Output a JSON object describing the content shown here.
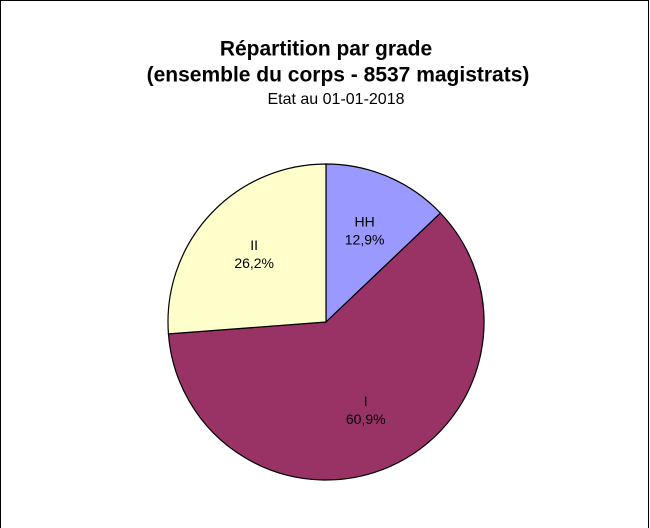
{
  "chart_data": {
    "type": "pie",
    "title": "Répartition par grade",
    "subtitle": "(ensemble du corps - 8537 magistrats)",
    "note": "Etat au 01-01-2018",
    "categories": [
      "HH",
      "I",
      "II"
    ],
    "values": [
      12.9,
      60.9,
      26.2
    ],
    "value_labels": [
      "12,9%",
      "60,9%",
      "26,2%"
    ],
    "colors": [
      "#9999ff",
      "#993366",
      "#ffffcc"
    ]
  }
}
